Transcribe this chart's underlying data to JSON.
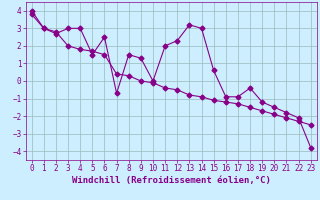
{
  "xlabel": "Windchill (Refroidissement éolien,°C)",
  "ylabel": "",
  "background_color": "#cceeff",
  "line_color": "#880088",
  "grid_color": "#99bbbb",
  "xlim": [
    -0.5,
    23.5
  ],
  "ylim": [
    -4.5,
    4.5
  ],
  "xticks": [
    0,
    1,
    2,
    3,
    4,
    5,
    6,
    7,
    8,
    9,
    10,
    11,
    12,
    13,
    14,
    15,
    16,
    17,
    18,
    19,
    20,
    21,
    22,
    23
  ],
  "yticks": [
    -4,
    -3,
    -2,
    -1,
    0,
    1,
    2,
    3,
    4
  ],
  "series1_x": [
    0,
    1,
    2,
    3,
    4,
    5,
    6,
    7,
    8,
    9,
    10,
    11,
    12,
    13,
    14,
    15,
    16,
    17,
    18,
    19,
    20,
    21,
    22,
    23
  ],
  "series1_y": [
    4.0,
    3.0,
    2.7,
    3.0,
    3.0,
    1.5,
    2.5,
    -0.7,
    1.5,
    1.3,
    0.0,
    2.0,
    2.3,
    3.2,
    3.0,
    0.6,
    -0.9,
    -0.9,
    -0.4,
    -1.2,
    -1.5,
    -1.8,
    -2.1,
    -3.8
  ],
  "series2_x": [
    0,
    1,
    2,
    3,
    4,
    5,
    6,
    7,
    8,
    9,
    10,
    11,
    12,
    13,
    14,
    15,
    16,
    17,
    18,
    19,
    20,
    21,
    22,
    23
  ],
  "series2_y": [
    3.8,
    3.0,
    2.8,
    2.0,
    1.8,
    1.7,
    1.5,
    0.4,
    0.3,
    0.0,
    -0.1,
    -0.4,
    -0.5,
    -0.8,
    -0.9,
    -1.1,
    -1.2,
    -1.3,
    -1.5,
    -1.7,
    -1.9,
    -2.1,
    -2.3,
    -2.5
  ],
  "marker": "D",
  "markersize": 2.5,
  "linewidth": 0.8,
  "tick_fontsize": 5.5,
  "label_fontsize": 6.5
}
